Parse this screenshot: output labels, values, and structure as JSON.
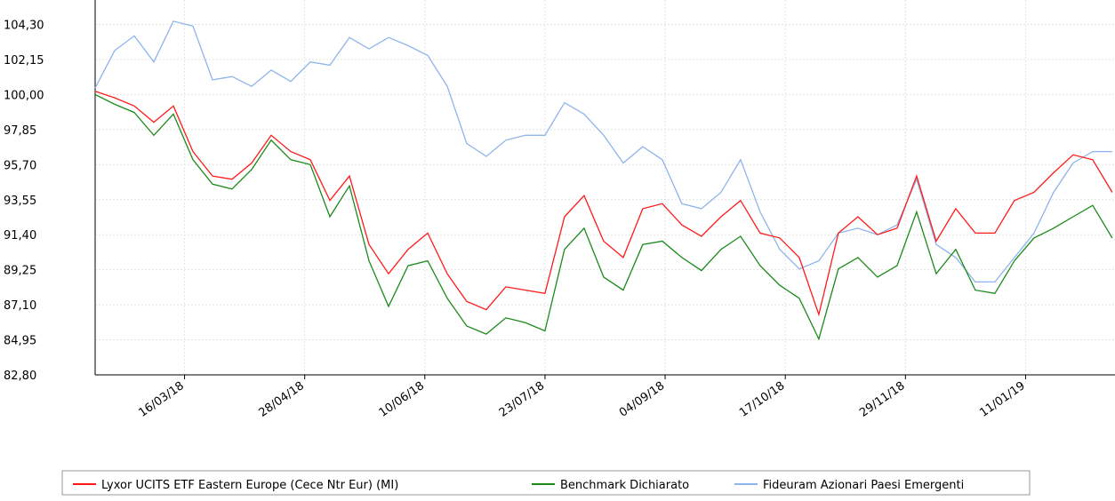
{
  "chart_data": {
    "type": "line",
    "x": [
      "12/02/18",
      "19/02/18",
      "26/02/18",
      "05/03/18",
      "12/03/18",
      "19/03/18",
      "26/03/18",
      "02/04/18",
      "09/04/18",
      "16/04/18",
      "23/04/18",
      "30/04/18",
      "07/05/18",
      "14/05/18",
      "21/05/18",
      "28/05/18",
      "04/06/18",
      "11/06/18",
      "18/06/18",
      "25/06/18",
      "02/07/18",
      "09/07/18",
      "16/07/18",
      "23/07/18",
      "30/07/18",
      "06/08/18",
      "13/08/18",
      "20/08/18",
      "27/08/18",
      "03/09/18",
      "10/09/18",
      "17/09/18",
      "24/09/18",
      "01/10/18",
      "08/10/18",
      "15/10/18",
      "22/10/18",
      "29/10/18",
      "05/11/18",
      "12/11/18",
      "19/11/18",
      "26/11/18",
      "03/12/18",
      "10/12/18",
      "17/12/18",
      "24/12/18",
      "31/12/18",
      "07/01/19",
      "14/01/19",
      "21/01/19",
      "28/01/19",
      "04/02/19",
      "11/02/19"
    ],
    "series": [
      {
        "name": "Lyxor UCITS ETF Eastern Europe (Cece Ntr Eur) (MI)",
        "color": "#ff1a1a",
        "values": [
          100.2,
          99.8,
          99.3,
          98.3,
          99.3,
          96.5,
          95.0,
          94.8,
          95.8,
          97.5,
          96.5,
          96.0,
          93.5,
          95.0,
          90.8,
          89.0,
          90.5,
          91.5,
          89.0,
          87.3,
          86.8,
          88.2,
          88.0,
          87.8,
          92.5,
          93.8,
          91.0,
          90.0,
          93.0,
          93.3,
          92.0,
          91.3,
          92.5,
          93.5,
          91.5,
          91.2,
          90.0,
          86.5,
          91.5,
          92.5,
          91.4,
          91.8,
          95.0,
          91.0,
          93.0,
          91.5,
          91.5,
          93.5,
          94.0,
          95.2,
          96.3,
          96.0,
          94.0
        ]
      },
      {
        "name": "Benchmark Dichiarato",
        "color": "#1a8a1a",
        "values": [
          100.0,
          99.4,
          98.9,
          97.5,
          98.8,
          96.0,
          94.5,
          94.2,
          95.4,
          97.2,
          96.0,
          95.7,
          92.5,
          94.4,
          89.8,
          87.0,
          89.5,
          89.8,
          87.5,
          85.8,
          85.3,
          86.3,
          86.0,
          85.5,
          90.5,
          91.8,
          88.8,
          88.0,
          90.8,
          91.0,
          90.0,
          89.2,
          90.5,
          91.3,
          89.5,
          88.3,
          87.5,
          85.0,
          89.3,
          90.0,
          88.8,
          89.5,
          92.8,
          89.0,
          90.5,
          88.0,
          87.8,
          89.8,
          91.2,
          91.8,
          92.5,
          93.2,
          91.2
        ]
      },
      {
        "name": "Fideuram Azionari Paesi Emergenti",
        "color": "#8fb4ea",
        "values": [
          100.4,
          102.7,
          103.6,
          102.0,
          104.5,
          104.2,
          100.9,
          101.1,
          100.5,
          101.5,
          100.8,
          102.0,
          101.8,
          103.5,
          102.8,
          103.5,
          103.0,
          102.4,
          100.5,
          97.0,
          96.2,
          97.2,
          97.5,
          97.5,
          99.5,
          98.8,
          97.5,
          95.8,
          96.8,
          96.0,
          93.3,
          93.0,
          94.0,
          96.0,
          92.8,
          90.5,
          89.3,
          89.8,
          91.5,
          91.8,
          91.4,
          92.0,
          94.8,
          90.8,
          90.0,
          88.5,
          88.5,
          90.0,
          91.5,
          94.0,
          95.8,
          96.5,
          96.5
        ]
      }
    ],
    "xlim": [
      "12/02/18",
      "12/02/19"
    ],
    "xticks": [
      "16/03/18",
      "28/04/18",
      "10/06/18",
      "23/07/18",
      "04/09/18",
      "17/10/18",
      "29/11/18",
      "11/01/19"
    ],
    "ylim": [
      82.8,
      105.8
    ],
    "yticks": [
      {
        "value": 82.8,
        "label": "82,80"
      },
      {
        "value": 84.95,
        "label": "84,95"
      },
      {
        "value": 87.1,
        "label": "87,10"
      },
      {
        "value": 89.25,
        "label": "89,25"
      },
      {
        "value": 91.4,
        "label": "91,40"
      },
      {
        "value": 93.55,
        "label": "93,55"
      },
      {
        "value": 95.7,
        "label": "95,70"
      },
      {
        "value": 97.85,
        "label": "97,85"
      },
      {
        "value": 100,
        "label": "100,00"
      },
      {
        "value": 102.15,
        "label": "102,15"
      },
      {
        "value": 104.3,
        "label": "104,30"
      }
    ],
    "grid": true
  }
}
